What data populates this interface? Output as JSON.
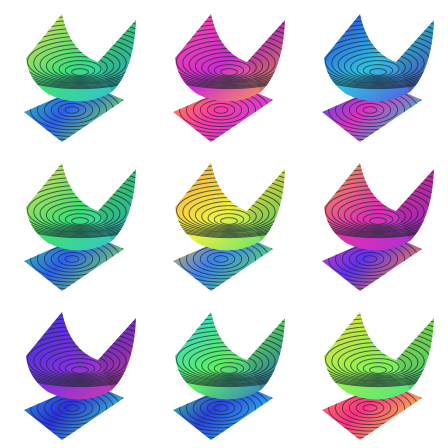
{
  "tiles": [
    {
      "top": [
        "#f4e04a",
        "#3ee07a",
        "#2fb8e8"
      ],
      "bottom": [
        "#35d0a0",
        "#2a5ff0",
        "#7ae050"
      ]
    },
    {
      "top": [
        "#ff4fa0",
        "#d02ad0",
        "#ffb040"
      ],
      "bottom": [
        "#ff9a30",
        "#ff3aa0",
        "#c040e0"
      ]
    },
    {
      "top": [
        "#2a3ae0",
        "#30c0e0",
        "#6040e0"
      ],
      "bottom": [
        "#3a50f0",
        "#e030c0",
        "#30c0d0"
      ]
    },
    {
      "top": [
        "#f0e050",
        "#40e070",
        "#30c0e0"
      ],
      "bottom": [
        "#40d090",
        "#2a60f0",
        "#80e050"
      ]
    },
    {
      "top": [
        "#ffa040",
        "#f0f040",
        "#40e080"
      ],
      "bottom": [
        "#f0c040",
        "#3a80f0",
        "#60e060"
      ]
    },
    {
      "top": [
        "#ffa040",
        "#e030b0",
        "#a030e0"
      ],
      "bottom": [
        "#e040b0",
        "#6030f0",
        "#ff8040"
      ]
    },
    {
      "top": [
        "#3a30e0",
        "#8030e0",
        "#e040a0"
      ],
      "bottom": [
        "#30a0e0",
        "#2a30e0",
        "#40d0c0"
      ]
    },
    {
      "top": [
        "#30d0e0",
        "#60f060",
        "#2a60e0"
      ],
      "bottom": [
        "#40e080",
        "#2a40e0",
        "#30c0f0"
      ]
    },
    {
      "top": [
        "#f0e040",
        "#90f050",
        "#40e090"
      ],
      "bottom": [
        "#ff8060",
        "#ff3080",
        "#f0d040"
      ]
    }
  ]
}
